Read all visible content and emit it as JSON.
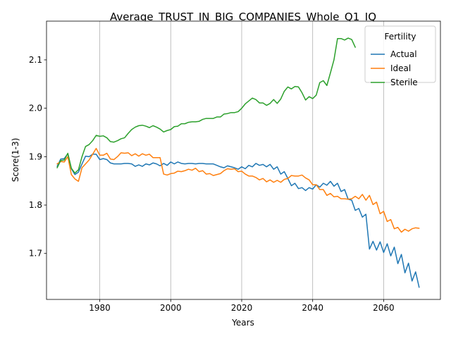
{
  "chart_data": {
    "type": "line",
    "title": "Average_TRUST_IN_BIG_COMPANIES_Whole_Q1_IQ",
    "xlabel": "Years",
    "ylabel": "Score(1-3)",
    "xlim": [
      1965,
      2076
    ],
    "ylim": [
      1.605,
      2.18
    ],
    "xticks": [
      1980,
      2000,
      2020,
      2040,
      2060
    ],
    "yticks": [
      1.7,
      1.8,
      1.9,
      2.0,
      2.1
    ],
    "ytick_labels": [
      "1.7",
      "1.8",
      "1.9",
      "2.0",
      "2.1"
    ],
    "grid": "x-only",
    "legend": {
      "title": "Fertility",
      "placement": "top-right"
    },
    "series": [
      {
        "name": "Actual",
        "color": "#1f77b4",
        "x": [
          1968,
          1969,
          1970,
          1971,
          1972,
          1973,
          1974,
          1975,
          1976,
          1977,
          1978,
          1979,
          1980,
          1981,
          1982,
          1983,
          1984,
          1985,
          1986,
          1987,
          1988,
          1989,
          1990,
          1991,
          1992,
          1993,
          1994,
          1995,
          1996,
          1997,
          1998,
          1999,
          2000,
          2001,
          2002,
          2003,
          2004,
          2005,
          2006,
          2007,
          2008,
          2009,
          2010,
          2011,
          2012,
          2013,
          2014,
          2015,
          2016,
          2017,
          2018,
          2019,
          2020,
          2021,
          2022,
          2023,
          2024,
          2025,
          2026,
          2027,
          2028,
          2029,
          2030,
          2031,
          2032,
          2033,
          2034,
          2035,
          2036,
          2037,
          2038,
          2039,
          2040,
          2041,
          2042,
          2043,
          2044,
          2045,
          2046,
          2047,
          2048,
          2049,
          2050,
          2051,
          2052,
          2053,
          2054,
          2055,
          2056,
          2057,
          2058,
          2059,
          2060,
          2061,
          2062,
          2063,
          2064,
          2065,
          2066,
          2067,
          2068,
          2069,
          2070
        ],
        "y": [
          1.88,
          1.895,
          1.896,
          1.906,
          1.875,
          1.863,
          1.868,
          1.885,
          1.901,
          1.9,
          1.905,
          1.905,
          1.894,
          1.896,
          1.894,
          1.887,
          1.885,
          1.885,
          1.885,
          1.886,
          1.886,
          1.885,
          1.88,
          1.883,
          1.88,
          1.885,
          1.883,
          1.887,
          1.885,
          1.881,
          1.886,
          1.882,
          1.889,
          1.885,
          1.889,
          1.886,
          1.885,
          1.886,
          1.886,
          1.885,
          1.886,
          1.886,
          1.885,
          1.885,
          1.885,
          1.882,
          1.879,
          1.877,
          1.881,
          1.879,
          1.877,
          1.874,
          1.879,
          1.875,
          1.882,
          1.879,
          1.886,
          1.882,
          1.884,
          1.879,
          1.884,
          1.874,
          1.879,
          1.864,
          1.869,
          1.855,
          1.84,
          1.845,
          1.834,
          1.836,
          1.83,
          1.836,
          1.833,
          1.842,
          1.837,
          1.845,
          1.841,
          1.849,
          1.839,
          1.845,
          1.828,
          1.832,
          1.812,
          1.81,
          1.789,
          1.793,
          1.775,
          1.781,
          1.709,
          1.725,
          1.707,
          1.724,
          1.702,
          1.72,
          1.695,
          1.713,
          1.679,
          1.698,
          1.66,
          1.68,
          1.643,
          1.662,
          1.63
        ]
      },
      {
        "name": "Ideal",
        "color": "#ff7f0e",
        "x": [
          1968,
          1969,
          1970,
          1971,
          1972,
          1973,
          1974,
          1975,
          1976,
          1977,
          1978,
          1979,
          1980,
          1981,
          1982,
          1983,
          1984,
          1985,
          1986,
          1987,
          1988,
          1989,
          1990,
          1991,
          1992,
          1993,
          1994,
          1995,
          1996,
          1997,
          1998,
          1999,
          2000,
          2001,
          2002,
          2003,
          2004,
          2005,
          2006,
          2007,
          2008,
          2009,
          2010,
          2011,
          2012,
          2013,
          2014,
          2015,
          2016,
          2017,
          2018,
          2019,
          2020,
          2021,
          2022,
          2023,
          2024,
          2025,
          2026,
          2027,
          2028,
          2029,
          2030,
          2031,
          2032,
          2033,
          2034,
          2035,
          2036,
          2037,
          2038,
          2039,
          2040,
          2041,
          2042,
          2043,
          2044,
          2045,
          2046,
          2047,
          2048,
          2049,
          2050,
          2051,
          2052,
          2053,
          2054,
          2055,
          2056,
          2057,
          2058,
          2059,
          2060,
          2061,
          2062,
          2063,
          2064,
          2065,
          2066,
          2067,
          2068,
          2069,
          2070
        ],
        "y": [
          1.885,
          1.89,
          1.889,
          1.9,
          1.863,
          1.854,
          1.849,
          1.877,
          1.885,
          1.893,
          1.905,
          1.917,
          1.903,
          1.903,
          1.907,
          1.895,
          1.894,
          1.9,
          1.908,
          1.907,
          1.908,
          1.902,
          1.906,
          1.901,
          1.906,
          1.903,
          1.905,
          1.898,
          1.898,
          1.898,
          1.864,
          1.862,
          1.865,
          1.866,
          1.87,
          1.869,
          1.871,
          1.874,
          1.872,
          1.876,
          1.869,
          1.871,
          1.864,
          1.865,
          1.861,
          1.863,
          1.865,
          1.871,
          1.875,
          1.874,
          1.875,
          1.869,
          1.87,
          1.864,
          1.86,
          1.86,
          1.857,
          1.852,
          1.855,
          1.848,
          1.852,
          1.847,
          1.851,
          1.847,
          1.853,
          1.855,
          1.861,
          1.86,
          1.86,
          1.862,
          1.856,
          1.852,
          1.842,
          1.842,
          1.832,
          1.832,
          1.82,
          1.824,
          1.817,
          1.818,
          1.813,
          1.813,
          1.812,
          1.813,
          1.818,
          1.813,
          1.822,
          1.81,
          1.82,
          1.801,
          1.806,
          1.782,
          1.787,
          1.766,
          1.77,
          1.751,
          1.754,
          1.744,
          1.75,
          1.746,
          1.751,
          1.753,
          1.752
        ]
      },
      {
        "name": "Sterile",
        "color": "#2ca02c",
        "x": [
          1968,
          1969,
          1970,
          1971,
          1972,
          1973,
          1974,
          1975,
          1976,
          1977,
          1978,
          1979,
          1980,
          1981,
          1982,
          1983,
          1984,
          1985,
          1986,
          1987,
          1988,
          1989,
          1990,
          1991,
          1992,
          1993,
          1994,
          1995,
          1996,
          1997,
          1998,
          1999,
          2000,
          2001,
          2002,
          2003,
          2004,
          2005,
          2006,
          2007,
          2008,
          2009,
          2010,
          2011,
          2012,
          2013,
          2014,
          2015,
          2016,
          2017,
          2018,
          2019,
          2020,
          2021,
          2022,
          2023,
          2024,
          2025,
          2026,
          2027,
          2028,
          2029,
          2030,
          2031,
          2032,
          2033,
          2034,
          2035,
          2036,
          2037,
          2038,
          2039,
          2040,
          2041,
          2042,
          2043,
          2044,
          2045,
          2046,
          2047,
          2048,
          2049,
          2050,
          2051,
          2052
        ],
        "y": [
          1.877,
          1.892,
          1.893,
          1.907,
          1.876,
          1.866,
          1.873,
          1.9,
          1.921,
          1.925,
          1.933,
          1.944,
          1.942,
          1.943,
          1.939,
          1.931,
          1.93,
          1.933,
          1.937,
          1.939,
          1.948,
          1.956,
          1.961,
          1.964,
          1.965,
          1.963,
          1.96,
          1.964,
          1.961,
          1.957,
          1.951,
          1.954,
          1.956,
          1.962,
          1.963,
          1.968,
          1.968,
          1.971,
          1.972,
          1.972,
          1.973,
          1.977,
          1.979,
          1.979,
          1.979,
          1.982,
          1.982,
          1.988,
          1.989,
          1.991,
          1.991,
          1.993,
          2.0,
          2.009,
          2.015,
          2.021,
          2.018,
          2.011,
          2.011,
          2.006,
          2.01,
          2.018,
          2.01,
          2.019,
          2.035,
          2.044,
          2.04,
          2.045,
          2.044,
          2.032,
          2.017,
          2.024,
          2.02,
          2.027,
          2.053,
          2.057,
          2.047,
          2.073,
          2.1,
          2.144,
          2.144,
          2.141,
          2.145,
          2.142,
          2.126
        ]
      }
    ]
  }
}
